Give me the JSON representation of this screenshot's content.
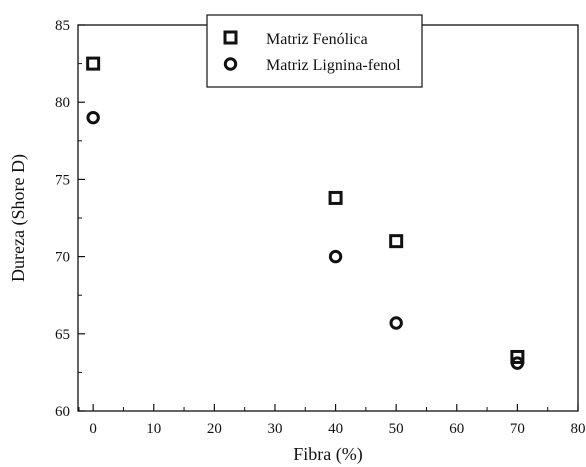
{
  "chart_data": {
    "type": "scatter",
    "xlabel": "Fibra (%)",
    "ylabel": "Dureza (Shore D)",
    "xlim": [
      -2.5,
      80
    ],
    "ylim": [
      60,
      85
    ],
    "xticks": [
      0,
      10,
      20,
      30,
      40,
      50,
      60,
      70,
      80
    ],
    "yticks": [
      60,
      65,
      70,
      75,
      80,
      85
    ],
    "xtick_labels": [
      "0",
      "10",
      "20",
      "30",
      "40",
      "50",
      "60",
      "70",
      "80"
    ],
    "ytick_labels": [
      "60",
      "65",
      "70",
      "75",
      "80",
      "85"
    ],
    "grid": false,
    "legend_position": "top-center",
    "series": [
      {
        "name": "Matriz Fenólica",
        "marker": "square",
        "x": [
          0,
          40,
          50,
          70
        ],
        "y": [
          82.5,
          73.8,
          71.0,
          63.5
        ]
      },
      {
        "name": "Matriz Lignina-fenol",
        "marker": "circle",
        "x": [
          0,
          40,
          50,
          70
        ],
        "y": [
          79.0,
          70.0,
          65.7,
          63.1
        ]
      }
    ]
  }
}
